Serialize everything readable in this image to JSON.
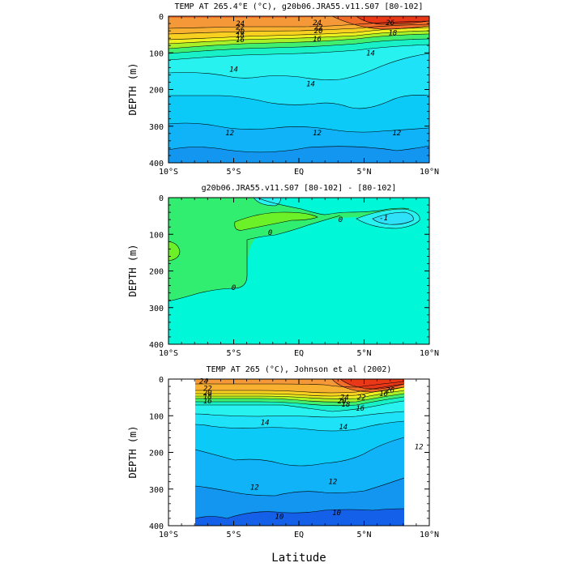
{
  "x_axis": {
    "label": "Latitude",
    "range": [
      -10,
      10
    ],
    "tick_values": [
      -10,
      -5,
      0,
      5,
      10
    ],
    "tick_labels": [
      "10°S",
      "5°S",
      "EQ",
      "5°N",
      "10°N"
    ]
  },
  "y_axis": {
    "label": "DEPTH (m)",
    "range": [
      0,
      400
    ],
    "inverted": true,
    "tick_values": [
      0,
      100,
      200,
      300,
      400
    ],
    "tick_labels": [
      "0",
      "100",
      "200",
      "300",
      "400"
    ]
  },
  "colors": {
    "t10": "#1560e8",
    "t11": "#1296f0",
    "t12": "#10b2f8",
    "t13": "#0ccaf8",
    "t14": "#1ee2f8",
    "t15": "#28f2f0",
    "t16": "#18f0c8",
    "t17": "#40ee70",
    "t18": "#a8f028",
    "t19": "#eef020",
    "t20": "#f8d020",
    "t22": "#f8b030",
    "t24": "#f49838",
    "t26": "#f06c28",
    "t28": "#e83818",
    "d_base": "#00f8d8",
    "d_pos": "#32ee70",
    "d_pos_hi": "#6cf028",
    "d_neg": "#28f2f0",
    "d_neg_lo": "#2ee0f8"
  },
  "chart_data": [
    {
      "type": "contour",
      "title": "TEMP AT 265.4°E (°C), g20b06.JRA55.v11.S07 [80-102]",
      "xlabel": "",
      "ylabel": "DEPTH (m)",
      "xlim": [
        -10,
        10
      ],
      "ylim": [
        400,
        0
      ],
      "contour_interval": 1,
      "labeled_contours": [
        {
          "label": "24",
          "x": -4.5,
          "y": 20
        },
        {
          "label": "24",
          "x": 1.4,
          "y": 18
        },
        {
          "label": "26",
          "x": 7.0,
          "y": 18
        },
        {
          "label": "22",
          "x": -4.5,
          "y": 30
        },
        {
          "label": "20",
          "x": -4.5,
          "y": 42
        },
        {
          "label": "18",
          "x": -4.5,
          "y": 52
        },
        {
          "label": "16",
          "x": -4.5,
          "y": 64
        },
        {
          "label": "22",
          "x": 1.5,
          "y": 30
        },
        {
          "label": "20",
          "x": 1.5,
          "y": 40
        },
        {
          "label": "18",
          "x": 7.2,
          "y": 45
        },
        {
          "label": "16",
          "x": 1.4,
          "y": 62
        },
        {
          "label": "14",
          "x": -5.0,
          "y": 145
        },
        {
          "label": "14",
          "x": 0.9,
          "y": 185
        },
        {
          "label": "14",
          "x": 5.5,
          "y": 100
        },
        {
          "label": "12",
          "x": -5.3,
          "y": 318
        },
        {
          "label": "12",
          "x": 1.4,
          "y": 318
        },
        {
          "label": "12",
          "x": 7.5,
          "y": 318
        }
      ]
    },
    {
      "type": "contour",
      "title": "g20b06.JRA55.v11.S07 [80-102] - [80-102]",
      "xlabel": "",
      "ylabel": "DEPTH (m)",
      "xlim": [
        -10,
        10
      ],
      "ylim": [
        400,
        0
      ],
      "labeled_contours": [
        {
          "label": "0",
          "x": 3.2,
          "y": 60
        },
        {
          "label": "0",
          "x": -2.2,
          "y": 95
        },
        {
          "label": "0",
          "x": -5.0,
          "y": 245
        },
        {
          "label": "-1",
          "x": 6.5,
          "y": 55
        }
      ]
    },
    {
      "type": "contour",
      "title": "TEMP AT 265 (°C), Johnson et al (2002)",
      "xlabel": "Latitude",
      "ylabel": "DEPTH (m)",
      "xlim": [
        -10,
        10
      ],
      "ylim": [
        400,
        0
      ],
      "data_extent_x": [
        -8,
        8
      ],
      "contour_interval": 1,
      "labeled_contours": [
        {
          "label": "24",
          "x": -7.3,
          "y": 5
        },
        {
          "label": "22",
          "x": -7.0,
          "y": 25
        },
        {
          "label": "20",
          "x": -7.0,
          "y": 38
        },
        {
          "label": "18",
          "x": -7.0,
          "y": 48
        },
        {
          "label": "16",
          "x": -7.0,
          "y": 60
        },
        {
          "label": "24",
          "x": 3.5,
          "y": 50
        },
        {
          "label": "22",
          "x": 4.8,
          "y": 50
        },
        {
          "label": "20",
          "x": 3.3,
          "y": 60
        },
        {
          "label": "18",
          "x": 3.6,
          "y": 68
        },
        {
          "label": "16",
          "x": 6.5,
          "y": 40
        },
        {
          "label": "16",
          "x": 4.7,
          "y": 80
        },
        {
          "label": "26",
          "x": 7.0,
          "y": 30
        },
        {
          "label": "14",
          "x": -2.6,
          "y": 118
        },
        {
          "label": "14",
          "x": 3.4,
          "y": 130
        },
        {
          "label": "12",
          "x": 9.2,
          "y": 185
        },
        {
          "label": "12",
          "x": -3.4,
          "y": 295
        },
        {
          "label": "12",
          "x": 2.6,
          "y": 280
        },
        {
          "label": "10",
          "x": -1.5,
          "y": 375
        },
        {
          "label": "10",
          "x": 2.9,
          "y": 365
        }
      ]
    }
  ]
}
